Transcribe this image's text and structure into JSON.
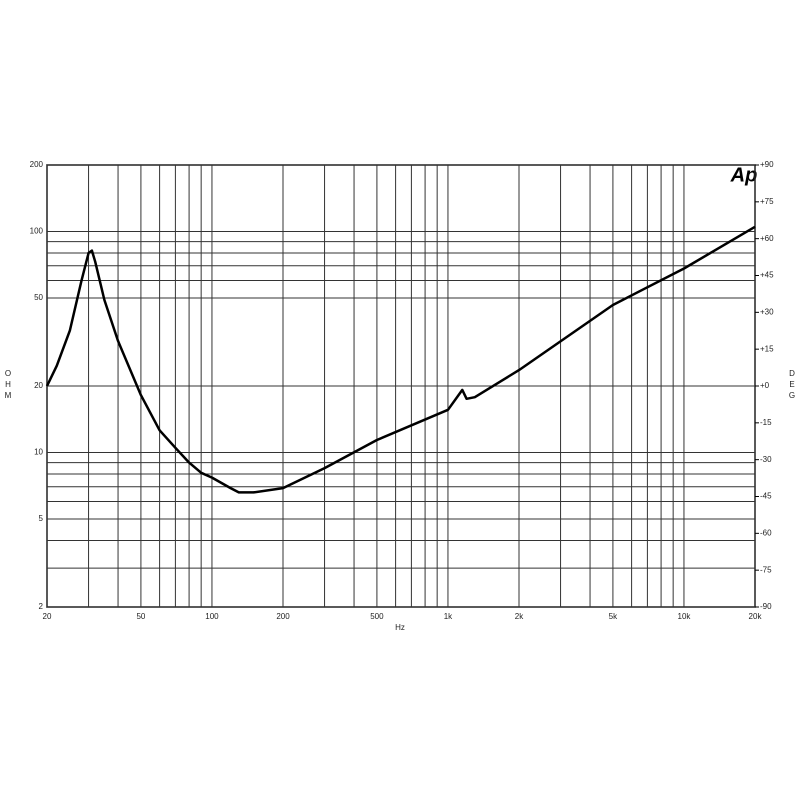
{
  "chart_data": {
    "type": "line",
    "logo": "Ap",
    "xlabel": "Hz",
    "ylabel": "OHM",
    "y2label": "DEG",
    "log_x": true,
    "log_y": true,
    "grid": true,
    "xlim": [
      20,
      20000
    ],
    "xticks": [
      20,
      50,
      100,
      200,
      500,
      {
        "value": 1000,
        "label": "1k"
      },
      {
        "value": 2000,
        "label": "2k"
      },
      {
        "value": 5000,
        "label": "5k"
      },
      {
        "value": 10000,
        "label": "10k"
      },
      {
        "value": 20000,
        "label": "20k"
      }
    ],
    "xgrid": [
      30,
      40,
      60,
      70,
      80,
      90,
      300,
      400,
      600,
      700,
      800,
      900,
      3000,
      4000,
      6000,
      7000,
      8000,
      9000
    ],
    "ylim": [
      2,
      200
    ],
    "yticks": [
      2,
      5,
      10,
      20,
      50,
      100,
      200
    ],
    "ygrid": [
      3,
      4,
      6,
      7,
      8,
      9,
      60,
      70,
      80,
      90
    ],
    "y2lim": [
      -90,
      90
    ],
    "y2ticks": [
      {
        "value": 90,
        "label": "+90"
      },
      {
        "value": 75,
        "label": "+75"
      },
      {
        "value": 60,
        "label": "+60"
      },
      {
        "value": 45,
        "label": "+45"
      },
      {
        "value": 30,
        "label": "+30"
      },
      {
        "value": 15,
        "label": "+15"
      },
      {
        "value": 0,
        "label": "+0"
      },
      -15,
      -30,
      -45,
      -60,
      -75,
      -90
    ],
    "series": [
      {
        "color": "#000000",
        "x": [
          20,
          22,
          25,
          28,
          30,
          31,
          32,
          35,
          40,
          50,
          60,
          70,
          80,
          90,
          100,
          120,
          130,
          150,
          200,
          300,
          500,
          1000,
          1150,
          1200,
          1300,
          2000,
          5000,
          10000,
          20000
        ],
        "values": [
          20,
          24.7,
          35.7,
          60,
          80,
          82,
          73,
          49,
          32,
          18.2,
          12.6,
          10.5,
          9,
          8.1,
          7.7,
          6.9,
          6.6,
          6.6,
          6.9,
          8.5,
          11.4,
          15.6,
          19.2,
          17.5,
          17.8,
          23.6,
          46.5,
          68,
          105
        ]
      }
    ]
  }
}
